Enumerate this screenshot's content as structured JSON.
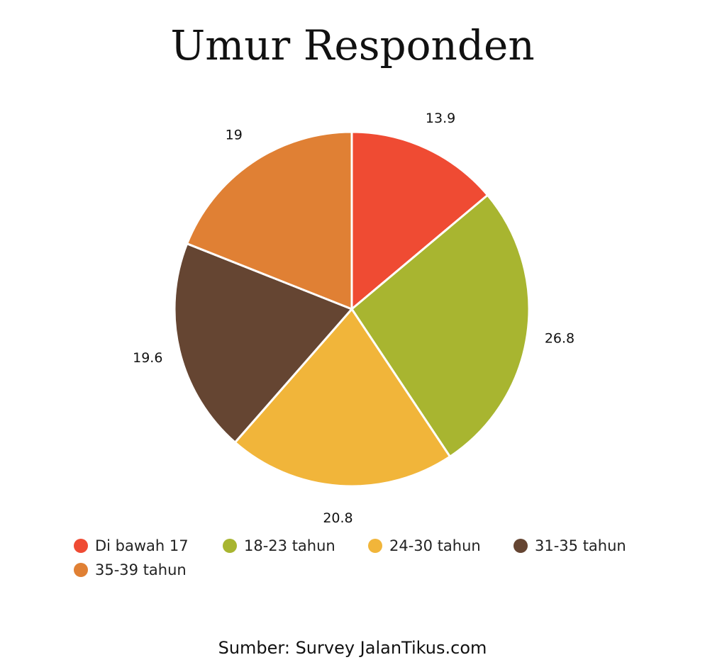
{
  "title": "Umur Responden",
  "source": "Sumber: Survey JalanTikus.com",
  "chart_data": {
    "type": "pie",
    "title": "Umur Responden",
    "categories": [
      "Di bawah 17",
      "18-23 tahun",
      "24-30 tahun",
      "31-35 tahun",
      "35-39 tahun"
    ],
    "values": [
      13.9,
      26.8,
      20.8,
      19.6,
      19
    ],
    "data_labels": [
      "13.9",
      "26.8",
      "20.8",
      "19.6",
      "19"
    ],
    "colors": [
      "#ef4b33",
      "#a8b530",
      "#f1b53a",
      "#654532",
      "#e08034"
    ],
    "legend_position": "bottom",
    "start_angle": "top",
    "direction": "clockwise"
  }
}
